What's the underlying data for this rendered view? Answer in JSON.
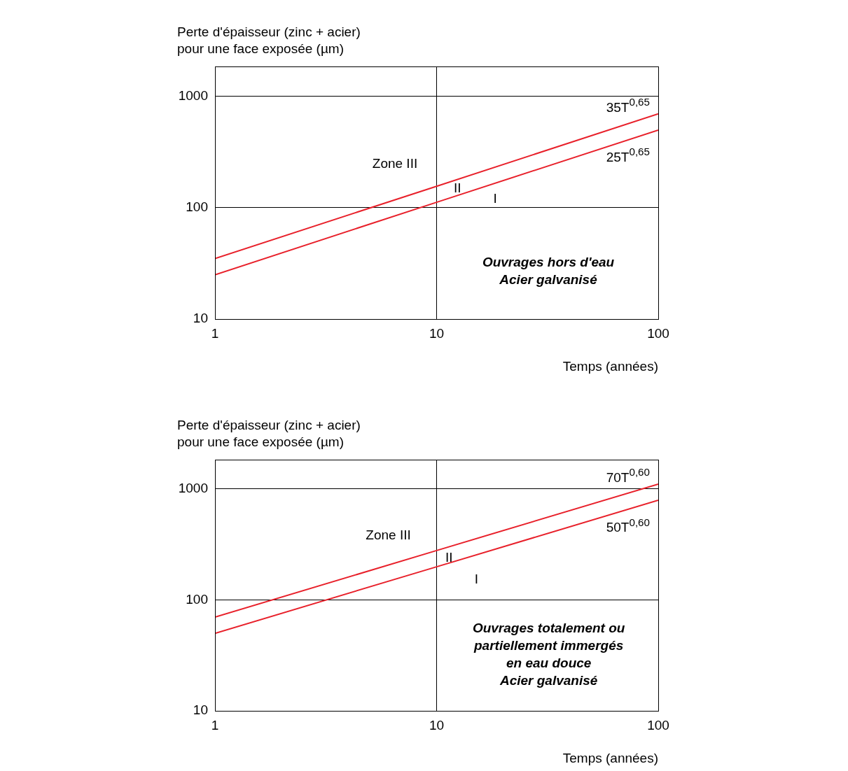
{
  "chart_data": [
    {
      "type": "line",
      "ylabel": "Perte d'épaisseur (zinc + acier)\npour une face exposée (µm)",
      "xlabel": "Temps (années)",
      "log": "xy",
      "grid": true,
      "xlim": [
        1,
        100
      ],
      "xticks": [
        1,
        10,
        100
      ],
      "ylim": [
        10,
        1860
      ],
      "yticks": [
        10,
        100,
        1000
      ],
      "series": [
        {
          "name": "35T$^{0,65}$",
          "color": "#e8202a",
          "x": [
            1,
            10,
            100
          ],
          "values": [
            35,
            156,
            698
          ]
        },
        {
          "name": "25T$^{0,65}$",
          "color": "#e8202a",
          "x": [
            1,
            10,
            100
          ],
          "values": [
            25,
            112,
            499
          ]
        }
      ],
      "annotations": [
        "Zone III",
        "II",
        "I",
        "Ouvrages hors d'eau\nAcier galvanisé"
      ]
    },
    {
      "type": "line",
      "ylabel": "Perte d'épaisseur (zinc + acier)\npour une face exposée (µm)",
      "xlabel": "Temps (années)",
      "log": "xy",
      "grid": true,
      "xlim": [
        1,
        100
      ],
      "xticks": [
        1,
        10,
        100
      ],
      "ylim": [
        10,
        1840
      ],
      "yticks": [
        10,
        100,
        1000
      ],
      "series": [
        {
          "name": "70T$^{0,60}$",
          "color": "#e8202a",
          "x": [
            1,
            10,
            100
          ],
          "values": [
            70,
            279,
            1109
          ]
        },
        {
          "name": "50T$^{0,60}$",
          "color": "#e8202a",
          "x": [
            1,
            10,
            100
          ],
          "values": [
            50,
            199,
            792
          ]
        }
      ],
      "annotations": [
        "Zone III",
        "II",
        "I",
        "Ouvrages totalement ou\npartiellement immergés\nen eau douce\nAcier galvanisé"
      ]
    }
  ]
}
